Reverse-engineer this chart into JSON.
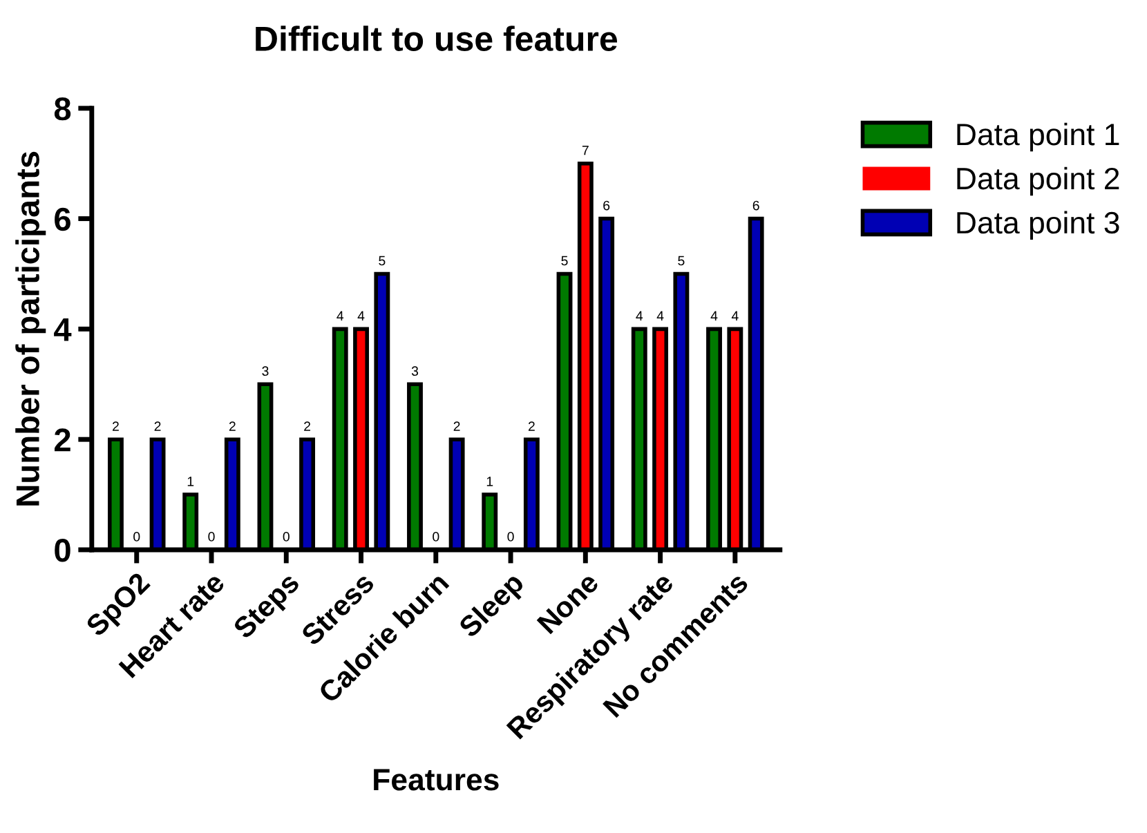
{
  "chart_data": {
    "type": "bar",
    "title": "Difficult to use feature",
    "xlabel": "Features",
    "ylabel": "Number of participants",
    "categories": [
      "SpO2",
      "Heart rate",
      "Steps",
      "Stress",
      "Calorie burn",
      "Sleep",
      "None",
      "Respiratory rate",
      "No comments"
    ],
    "series": [
      {
        "name": "Data point 1",
        "color": "#007a00",
        "values": [
          2,
          1,
          3,
          4,
          3,
          1,
          5,
          4,
          4
        ]
      },
      {
        "name": "Data point 2",
        "color": "#ff0000",
        "values": [
          0,
          0,
          0,
          4,
          0,
          0,
          7,
          4,
          4
        ]
      },
      {
        "name": "Data point 3",
        "color": "#0000b4",
        "values": [
          2,
          2,
          2,
          5,
          2,
          2,
          6,
          5,
          6
        ]
      }
    ],
    "ylim": [
      0,
      8
    ],
    "yticks": [
      0,
      2,
      4,
      6,
      8
    ],
    "data_labels": true,
    "grid": false,
    "legend": "top right"
  }
}
